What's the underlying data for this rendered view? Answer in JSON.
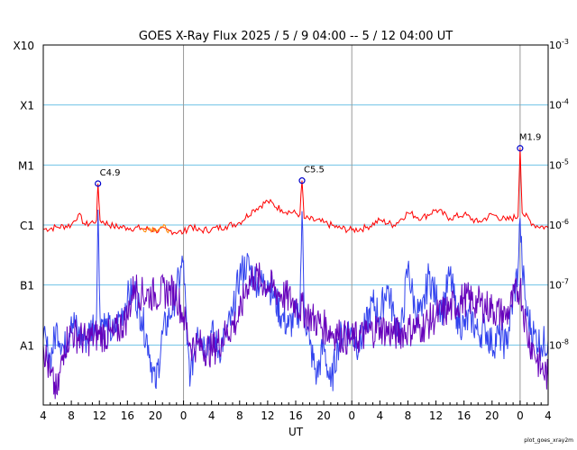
{
  "chart_data": {
    "type": "line",
    "title": "GOES X-Ray Flux   2025 /  5 /  9   04:00 --  5 / 12   04:00   UT",
    "xlabel": "UT",
    "x_range_hours": [
      0,
      72
    ],
    "x_tick_labels": [
      "4",
      "8",
      "12",
      "16",
      "20",
      "0",
      "4",
      "8",
      "12",
      "16",
      "20",
      "0",
      "4",
      "8",
      "12",
      "16",
      "20",
      "0",
      "4"
    ],
    "day_boundaries_hours": [
      20,
      44,
      68
    ],
    "y_scale": "log",
    "y_range_wm2": [
      1e-09,
      0.001
    ],
    "y_left_labels": [
      {
        "label": "X10",
        "value": 0.001
      },
      {
        "label": "X1",
        "value": 0.0001
      },
      {
        "label": "M1",
        "value": 1e-05
      },
      {
        "label": "C1",
        "value": 1e-06
      },
      {
        "label": "B1",
        "value": 1e-07
      },
      {
        "label": "A1",
        "value": 1e-08
      }
    ],
    "y_right_labels": [
      {
        "label": "10",
        "exp": "-3",
        "value": 0.001
      },
      {
        "label": "10",
        "exp": "-4",
        "value": 0.0001
      },
      {
        "label": "10",
        "exp": "-5",
        "value": 1e-05
      },
      {
        "label": "10",
        "exp": "-6",
        "value": 1e-06
      },
      {
        "label": "10",
        "exp": "-7",
        "value": 1e-07
      },
      {
        "label": "10",
        "exp": "-8",
        "value": 1e-08
      }
    ],
    "grid": "horizontal-at-class-levels",
    "series": [
      {
        "color": "#ff0000",
        "points": [
          [
            0,
            8.5e-07
          ],
          [
            2,
            9.2e-07
          ],
          [
            4,
            1e-06
          ],
          [
            5,
            1.5e-06
          ],
          [
            6,
            1e-06
          ],
          [
            7.6,
            1.2e-06
          ],
          [
            7.8,
            4.9e-06
          ],
          [
            8.1,
            1.2e-06
          ],
          [
            10,
            9.5e-07
          ],
          [
            12,
            9e-07
          ],
          [
            14,
            8.8e-07
          ],
          [
            16,
            8.2e-07
          ],
          [
            18,
            8e-07
          ],
          [
            20,
            7.5e-07
          ],
          [
            21,
            1e-06
          ],
          [
            22,
            8e-07
          ],
          [
            24,
            8.5e-07
          ],
          [
            26,
            9.5e-07
          ],
          [
            28,
            1.1e-06
          ],
          [
            30,
            1.8e-06
          ],
          [
            32,
            2.5e-06
          ],
          [
            34,
            1.8e-06
          ],
          [
            36.6,
            1.5e-06
          ],
          [
            36.9,
            5.5e-06
          ],
          [
            37.2,
            1.3e-06
          ],
          [
            40,
            1.1e-06
          ],
          [
            42,
            9e-07
          ],
          [
            44,
            8.2e-07
          ],
          [
            46,
            9e-07
          ],
          [
            48,
            1.2e-06
          ],
          [
            50,
            1e-06
          ],
          [
            52,
            1.6e-06
          ],
          [
            54,
            1.3e-06
          ],
          [
            56,
            1.8e-06
          ],
          [
            58,
            1.3e-06
          ],
          [
            60,
            1.5e-06
          ],
          [
            62,
            1.1e-06
          ],
          [
            64,
            1.5e-06
          ],
          [
            66,
            1.2e-06
          ],
          [
            67.7,
            1.4e-06
          ],
          [
            68.0,
            1.9e-05
          ],
          [
            68.3,
            1.6e-06
          ],
          [
            70,
            1e-06
          ],
          [
            72,
            9e-07
          ]
        ]
      },
      {
        "color": "#ff8800",
        "points": [
          [
            14,
            8.5e-07
          ],
          [
            15,
            9e-07
          ],
          [
            16,
            8.6e-07
          ],
          [
            17,
            9.1e-07
          ],
          [
            18,
            8.4e-07
          ]
        ]
      },
      {
        "color": "#3344ee",
        "points": [
          [
            0,
            1.2e-08
          ],
          [
            1,
            6e-09
          ],
          [
            2,
            2e-08
          ],
          [
            3,
            8e-09
          ],
          [
            4,
            3e-08
          ],
          [
            5,
            1.5e-08
          ],
          [
            6,
            1.2e-08
          ],
          [
            7.6,
            3e-08
          ],
          [
            7.8,
            1.8e-06
          ],
          [
            8.1,
            3e-08
          ],
          [
            9,
            2e-08
          ],
          [
            10,
            1.5e-08
          ],
          [
            11,
            3e-08
          ],
          [
            12,
            6e-08
          ],
          [
            13,
            8e-08
          ],
          [
            14,
            3e-08
          ],
          [
            15,
            1e-08
          ],
          [
            16,
            2e-09
          ],
          [
            17,
            1.5e-08
          ],
          [
            18,
            3e-08
          ],
          [
            19,
            8e-08
          ],
          [
            20,
            2.5e-07
          ],
          [
            20.5,
            1e-08
          ],
          [
            21,
            3e-09
          ],
          [
            22,
            2e-08
          ],
          [
            23,
            1e-08
          ],
          [
            24,
            1.6e-08
          ],
          [
            25,
            8e-09
          ],
          [
            26,
            1.5e-08
          ],
          [
            27,
            3e-08
          ],
          [
            28,
            1.5e-07
          ],
          [
            29,
            2.2e-07
          ],
          [
            30,
            1.4e-07
          ],
          [
            31,
            1e-07
          ],
          [
            32,
            1.2e-07
          ],
          [
            33,
            6e-08
          ],
          [
            34,
            3e-08
          ],
          [
            35,
            2e-08
          ],
          [
            36.6,
            4e-08
          ],
          [
            36.9,
            1.7e-06
          ],
          [
            37.2,
            4e-08
          ],
          [
            38,
            1e-08
          ],
          [
            39,
            3e-09
          ],
          [
            40,
            1e-08
          ],
          [
            41,
            2e-09
          ],
          [
            42,
            1e-08
          ],
          [
            43,
            2e-08
          ],
          [
            44,
            1.5e-08
          ],
          [
            45,
            1e-08
          ],
          [
            46,
            2e-08
          ],
          [
            47,
            5e-08
          ],
          [
            48,
            3e-08
          ],
          [
            49,
            1e-07
          ],
          [
            50,
            3e-08
          ],
          [
            51,
            1.5e-08
          ],
          [
            52,
            2e-07
          ],
          [
            53,
            4e-08
          ],
          [
            54,
            3e-08
          ],
          [
            55,
            1.5e-07
          ],
          [
            56,
            6e-08
          ],
          [
            57,
            4e-08
          ],
          [
            58,
            1.5e-07
          ],
          [
            59,
            3e-08
          ],
          [
            60,
            2e-08
          ],
          [
            61,
            3e-08
          ],
          [
            62,
            1.5e-08
          ],
          [
            63,
            2e-08
          ],
          [
            64,
            1e-08
          ],
          [
            65,
            1.5e-08
          ],
          [
            66,
            1e-08
          ],
          [
            67.7,
            1.8e-07
          ],
          [
            68.0,
            1.3e-06
          ],
          [
            68.3,
            2e-07
          ],
          [
            69,
            3e-08
          ],
          [
            70,
            1.5e-08
          ],
          [
            71,
            1e-08
          ],
          [
            72,
            1.2e-08
          ]
        ]
      },
      {
        "color": "#6600bb",
        "points": [
          [
            0,
            1e-08
          ],
          [
            1,
            3e-09
          ],
          [
            2,
            1.5e-09
          ],
          [
            3,
            1e-08
          ],
          [
            4,
            1.6e-08
          ],
          [
            6,
            1.2e-08
          ],
          [
            8,
            1.5e-08
          ],
          [
            10,
            1.4e-08
          ],
          [
            12,
            3e-08
          ],
          [
            13,
            1e-07
          ],
          [
            14,
            7e-08
          ],
          [
            16,
            7e-08
          ],
          [
            18,
            8e-08
          ],
          [
            19,
            7e-08
          ],
          [
            20,
            3e-08
          ],
          [
            21,
            1e-08
          ],
          [
            22,
            1e-08
          ],
          [
            24,
            8e-09
          ],
          [
            26,
            1.5e-08
          ],
          [
            28,
            3e-08
          ],
          [
            29,
            1e-07
          ],
          [
            30,
            1.4e-07
          ],
          [
            32,
            1e-07
          ],
          [
            34,
            7e-08
          ],
          [
            36,
            5e-08
          ],
          [
            38,
            3e-08
          ],
          [
            40,
            2e-08
          ],
          [
            42,
            1.5e-08
          ],
          [
            44,
            1.2e-08
          ],
          [
            46,
            1.5e-08
          ],
          [
            48,
            2e-08
          ],
          [
            50,
            1.5e-08
          ],
          [
            52,
            1.8e-08
          ],
          [
            54,
            2e-08
          ],
          [
            56,
            3e-08
          ],
          [
            58,
            4e-08
          ],
          [
            60,
            6e-08
          ],
          [
            62,
            5e-08
          ],
          [
            64,
            4e-08
          ],
          [
            66,
            3e-08
          ],
          [
            68,
            1e-07
          ],
          [
            69,
            1.5e-08
          ],
          [
            70,
            8e-09
          ],
          [
            71,
            4e-09
          ],
          [
            72,
            3e-09
          ]
        ]
      }
    ],
    "annotations": [
      {
        "label": "C4.9",
        "x": 7.8,
        "y": 4.9e-06
      },
      {
        "label": "C5.5",
        "x": 36.9,
        "y": 5.5e-06
      },
      {
        "label": "M1.9",
        "x": 68.0,
        "y": 1.9e-05
      }
    ],
    "credit": "plot_goes_xray2m"
  }
}
